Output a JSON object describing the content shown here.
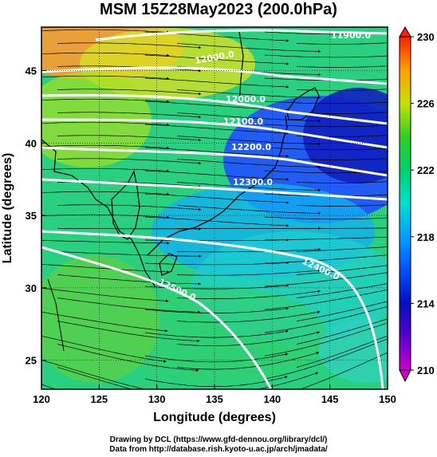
{
  "title": "MSM 15Z28May2023 (200.0hPa)",
  "x_axis": {
    "label": "Longitude (degrees)",
    "range": [
      120,
      150
    ],
    "ticks": [
      "120",
      "125",
      "130",
      "135",
      "140",
      "145",
      "150"
    ]
  },
  "y_axis": {
    "label": "Latitude  (degrees)",
    "range": [
      23,
      48
    ],
    "ticks": [
      "25",
      "30",
      "35",
      "40",
      "45"
    ]
  },
  "colorbar": {
    "range": [
      210,
      230
    ],
    "ticks": [
      "210",
      "214",
      "218",
      "222",
      "226",
      "230"
    ]
  },
  "contours": [
    {
      "label": "11900.0",
      "shown": true
    },
    {
      "label": "12000.0",
      "shown": true
    },
    {
      "label": "12100.0",
      "shown": true
    },
    {
      "label": "12200.0",
      "shown": true
    },
    {
      "label": "12300.0",
      "shown": true
    },
    {
      "label": "12400.0",
      "shown": true
    },
    {
      "label": "12500.0",
      "shown": true
    },
    {
      "label": "12000.0",
      "shown": true
    }
  ],
  "credits": {
    "line1": "Drawing by DCL (https://www.gfd-dennou.org/library/dcl/)",
    "line2": "Data from http://database.rish.kyoto-u.ac.jp/arch/jmadata/"
  },
  "colors": {
    "cold": "#1e3cff",
    "warm": "#ff7a1a",
    "contour": "#ffffff",
    "streamline": "#000000"
  }
}
